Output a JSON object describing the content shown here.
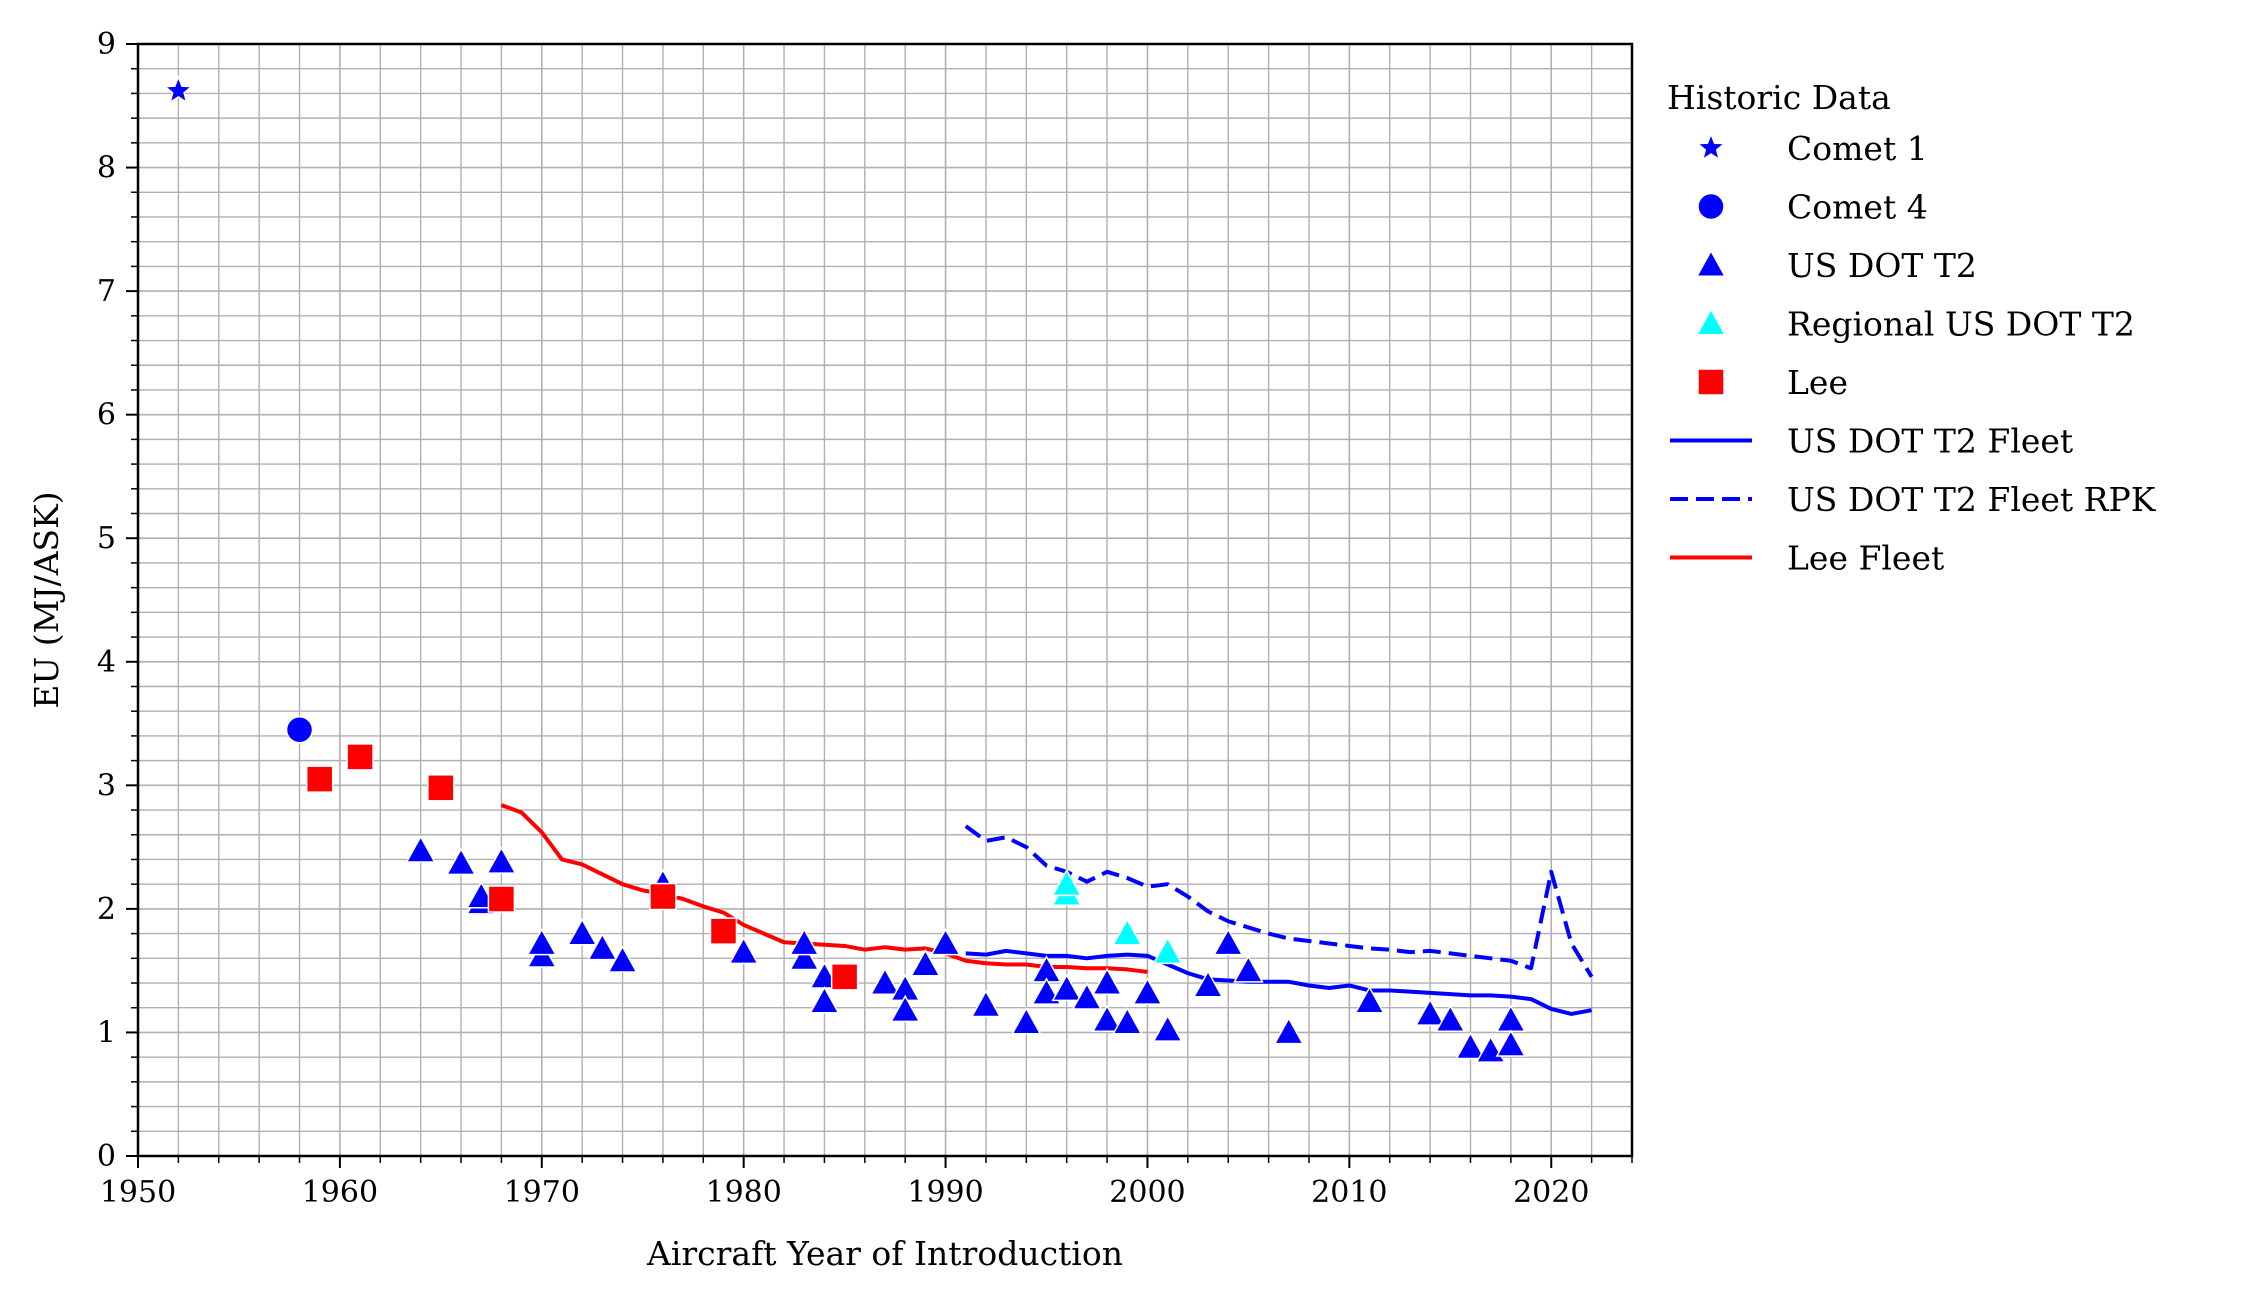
{
  "chart_data": {
    "type": "scatter",
    "title": "",
    "xlabel": "Aircraft Year of Introduction",
    "ylabel": "EU (MJ/ASK)",
    "xlim": [
      1950,
      2024
    ],
    "ylim": [
      0,
      9
    ],
    "xticks": [
      "1950",
      "1960",
      "1970",
      "1980",
      "1990",
      "2000",
      "2010",
      "2020"
    ],
    "yticks": [
      "0",
      "1",
      "2",
      "3",
      "4",
      "5",
      "6",
      "7",
      "8",
      "9"
    ],
    "grid": "major and minor",
    "legend": {
      "title": "Historic Data",
      "placement": "outside right"
    },
    "series": [
      {
        "name": "Comet 1",
        "kind": "scatter",
        "marker": "star",
        "color": "#0000ff",
        "points": [
          [
            1952,
            8.62
          ]
        ]
      },
      {
        "name": "Comet 4",
        "kind": "scatter",
        "marker": "circle",
        "color": "#0000ff",
        "points": [
          [
            1958,
            3.45
          ]
        ]
      },
      {
        "name": "US DOT T2",
        "kind": "scatter",
        "marker": "triangle",
        "color": "#0000ff",
        "points": [
          [
            1964,
            2.47
          ],
          [
            1966,
            2.37
          ],
          [
            1967,
            2.05
          ],
          [
            1967,
            2.1
          ],
          [
            1968,
            2.38
          ],
          [
            1970,
            1.62
          ],
          [
            1970,
            1.72
          ],
          [
            1972,
            1.8
          ],
          [
            1973,
            1.68
          ],
          [
            1974,
            1.58
          ],
          [
            1976,
            2.2
          ],
          [
            1980,
            1.65
          ],
          [
            1983,
            1.6
          ],
          [
            1983,
            1.72
          ],
          [
            1984,
            1.45
          ],
          [
            1984,
            1.25
          ],
          [
            1987,
            1.4
          ],
          [
            1988,
            1.35
          ],
          [
            1988,
            1.18
          ],
          [
            1989,
            1.55
          ],
          [
            1990,
            1.72
          ],
          [
            1992,
            1.22
          ],
          [
            1994,
            1.08
          ],
          [
            1995,
            1.5
          ],
          [
            1995,
            1.32
          ],
          [
            1996,
            1.35
          ],
          [
            1997,
            1.28
          ],
          [
            1998,
            1.4
          ],
          [
            1998,
            1.1
          ],
          [
            1999,
            1.08
          ],
          [
            2000,
            1.32
          ],
          [
            2001,
            1.02
          ],
          [
            2003,
            1.38
          ],
          [
            2004,
            1.72
          ],
          [
            2005,
            1.5
          ],
          [
            2007,
            1.0
          ],
          [
            2011,
            1.25
          ],
          [
            2014,
            1.15
          ],
          [
            2015,
            1.1
          ],
          [
            2016,
            0.88
          ],
          [
            2017,
            0.85
          ],
          [
            2018,
            1.1
          ],
          [
            2018,
            0.9
          ]
        ]
      },
      {
        "name": "Regional US DOT T2",
        "kind": "scatter",
        "marker": "triangle",
        "color": "#00ffff",
        "points": [
          [
            1996,
            2.12
          ],
          [
            1996,
            2.2
          ],
          [
            1999,
            1.8
          ],
          [
            2001,
            1.65
          ]
        ]
      },
      {
        "name": "Lee",
        "kind": "scatter",
        "marker": "square",
        "color": "#ff0000",
        "points": [
          [
            1959,
            3.05
          ],
          [
            1961,
            3.23
          ],
          [
            1965,
            2.98
          ],
          [
            1968,
            2.08
          ],
          [
            1976,
            2.1
          ],
          [
            1979,
            1.82
          ],
          [
            1985,
            1.45
          ]
        ]
      },
      {
        "name": "US DOT T2 Fleet",
        "kind": "line",
        "style": "solid",
        "color": "#0000ff",
        "points": [
          [
            1991,
            1.64
          ],
          [
            1992,
            1.63
          ],
          [
            1993,
            1.66
          ],
          [
            1994,
            1.64
          ],
          [
            1995,
            1.62
          ],
          [
            1996,
            1.62
          ],
          [
            1997,
            1.6
          ],
          [
            1998,
            1.62
          ],
          [
            1999,
            1.63
          ],
          [
            2000,
            1.62
          ],
          [
            2001,
            1.55
          ],
          [
            2002,
            1.48
          ],
          [
            2003,
            1.43
          ],
          [
            2004,
            1.42
          ],
          [
            2005,
            1.41
          ],
          [
            2006,
            1.41
          ],
          [
            2007,
            1.41
          ],
          [
            2008,
            1.38
          ],
          [
            2009,
            1.36
          ],
          [
            2010,
            1.38
          ],
          [
            2011,
            1.34
          ],
          [
            2012,
            1.34
          ],
          [
            2013,
            1.33
          ],
          [
            2014,
            1.32
          ],
          [
            2015,
            1.31
          ],
          [
            2016,
            1.3
          ],
          [
            2017,
            1.3
          ],
          [
            2018,
            1.29
          ],
          [
            2019,
            1.27
          ],
          [
            2020,
            1.19
          ],
          [
            2021,
            1.15
          ],
          [
            2022,
            1.18
          ]
        ]
      },
      {
        "name": "US DOT T2 Fleet RPK",
        "kind": "line",
        "style": "dashed",
        "color": "#0000ff",
        "points": [
          [
            1991,
            2.67
          ],
          [
            1992,
            2.55
          ],
          [
            1993,
            2.58
          ],
          [
            1994,
            2.5
          ],
          [
            1995,
            2.35
          ],
          [
            1996,
            2.3
          ],
          [
            1997,
            2.22
          ],
          [
            1998,
            2.3
          ],
          [
            1999,
            2.25
          ],
          [
            2000,
            2.18
          ],
          [
            2001,
            2.2
          ],
          [
            2002,
            2.1
          ],
          [
            2003,
            1.98
          ],
          [
            2004,
            1.9
          ],
          [
            2005,
            1.85
          ],
          [
            2006,
            1.8
          ],
          [
            2007,
            1.76
          ],
          [
            2008,
            1.74
          ],
          [
            2009,
            1.72
          ],
          [
            2010,
            1.7
          ],
          [
            2011,
            1.68
          ],
          [
            2012,
            1.67
          ],
          [
            2013,
            1.65
          ],
          [
            2014,
            1.66
          ],
          [
            2015,
            1.64
          ],
          [
            2016,
            1.62
          ],
          [
            2017,
            1.6
          ],
          [
            2018,
            1.58
          ],
          [
            2019,
            1.52
          ],
          [
            2020,
            2.3
          ],
          [
            2021,
            1.72
          ],
          [
            2022,
            1.45
          ]
        ]
      },
      {
        "name": "Lee Fleet",
        "kind": "line",
        "style": "solid",
        "color": "#ff0000",
        "points": [
          [
            1968,
            2.84
          ],
          [
            1969,
            2.78
          ],
          [
            1970,
            2.62
          ],
          [
            1971,
            2.4
          ],
          [
            1972,
            2.36
          ],
          [
            1973,
            2.28
          ],
          [
            1974,
            2.2
          ],
          [
            1975,
            2.15
          ],
          [
            1976,
            2.12
          ],
          [
            1977,
            2.08
          ],
          [
            1978,
            2.02
          ],
          [
            1979,
            1.97
          ],
          [
            1980,
            1.87
          ],
          [
            1981,
            1.8
          ],
          [
            1982,
            1.73
          ],
          [
            1983,
            1.72
          ],
          [
            1984,
            1.71
          ],
          [
            1985,
            1.7
          ],
          [
            1986,
            1.67
          ],
          [
            1987,
            1.69
          ],
          [
            1988,
            1.67
          ],
          [
            1989,
            1.68
          ],
          [
            1990,
            1.64
          ],
          [
            1991,
            1.58
          ],
          [
            1992,
            1.56
          ],
          [
            1993,
            1.55
          ],
          [
            1994,
            1.55
          ],
          [
            1995,
            1.53
          ],
          [
            1996,
            1.53
          ],
          [
            1997,
            1.52
          ],
          [
            1998,
            1.52
          ],
          [
            1999,
            1.51
          ],
          [
            2000,
            1.49
          ]
        ]
      }
    ]
  }
}
